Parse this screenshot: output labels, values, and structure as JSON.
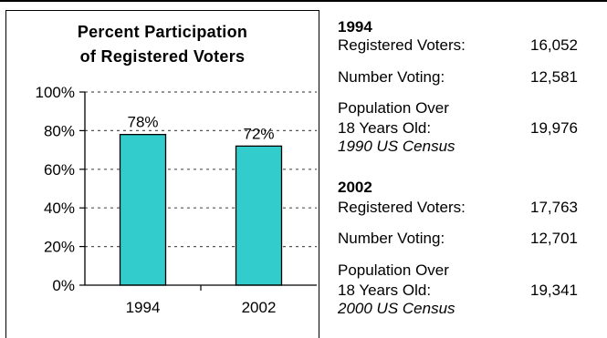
{
  "chart_data": {
    "type": "bar",
    "title_line1": "Percent Participation",
    "title_line2": "of Registered Voters",
    "categories": [
      "1994",
      "2002"
    ],
    "values": [
      78,
      72
    ],
    "value_labels": [
      "78%",
      "72%"
    ],
    "ylim": [
      0,
      100
    ],
    "yticks": [
      "0%",
      "20%",
      "40%",
      "60%",
      "80%",
      "100%"
    ],
    "grid": true,
    "bar_color": "#33CCCC"
  },
  "stats": {
    "y1994": {
      "year": "1994",
      "registered_label": "Registered Voters:",
      "registered_value": "16,052",
      "voting_label": "Number Voting:",
      "voting_value": "12,581",
      "pop_label_1": "Population Over",
      "pop_label_2": "18 Years Old:",
      "pop_value": "19,976",
      "pop_source": "1990 US Census"
    },
    "y2002": {
      "year": "2002",
      "registered_label": "Registered Voters:",
      "registered_value": "17,763",
      "voting_label": "Number Voting:",
      "voting_value": "12,701",
      "pop_label_1": "Population Over",
      "pop_label_2": "18 Years Old:",
      "pop_value": "19,341",
      "pop_source": "2000 US Census"
    }
  }
}
